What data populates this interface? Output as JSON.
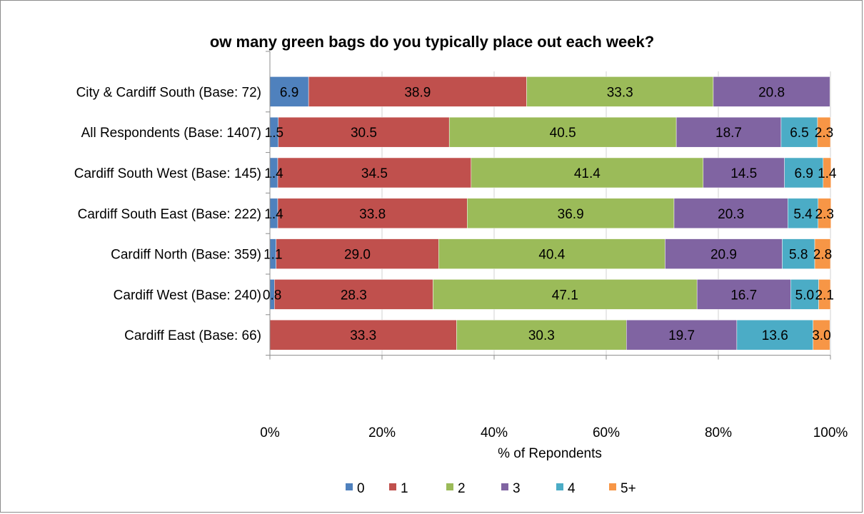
{
  "chart_data": {
    "type": "bar",
    "orientation": "horizontal",
    "stacked": "percent",
    "title": "ow many green bags do you typically place out each week?",
    "xlabel": "% of Repondents",
    "ylabel": "",
    "xlim": [
      0,
      100
    ],
    "x_ticks": [
      "0%",
      "20%",
      "40%",
      "60%",
      "80%",
      "100%"
    ],
    "grid": "vertical",
    "legend_position": "bottom",
    "categories": [
      "City & Cardiff South (Base: 72)",
      "All Respondents (Base: 1407)",
      "Cardiff South West (Base: 145)",
      "Cardiff South East (Base: 222)",
      "Cardiff North (Base: 359)",
      "Cardiff West (Base: 240)",
      "Cardiff East (Base: 66)"
    ],
    "series": [
      {
        "name": "0",
        "color": "#4f81bd",
        "values": [
          6.9,
          1.5,
          1.4,
          1.4,
          1.1,
          0.8,
          0
        ]
      },
      {
        "name": "1",
        "color": "#c0504d",
        "values": [
          38.9,
          30.5,
          34.5,
          33.8,
          29.0,
          28.3,
          33.3
        ]
      },
      {
        "name": "2",
        "color": "#9bbb59",
        "values": [
          33.3,
          40.5,
          41.4,
          36.9,
          40.4,
          47.1,
          30.3
        ]
      },
      {
        "name": "3",
        "color": "#8064a2",
        "values": [
          20.8,
          18.7,
          14.5,
          20.3,
          20.9,
          16.7,
          19.7
        ]
      },
      {
        "name": "4",
        "color": "#4bacc6",
        "values": [
          0,
          6.5,
          6.9,
          5.4,
          5.8,
          5.0,
          13.6
        ]
      },
      {
        "name": "5+",
        "color": "#f79646",
        "values": [
          0,
          2.3,
          1.4,
          2.3,
          2.8,
          2.1,
          3.0
        ]
      }
    ],
    "data_labels": [
      [
        "6.9",
        "38.9",
        "33.3",
        "20.8",
        "",
        ""
      ],
      [
        "1.5",
        "30.5",
        "40.5",
        "18.7",
        "6.5",
        "2.3"
      ],
      [
        "1.4",
        "34.5",
        "41.4",
        "14.5",
        "6.9",
        "1.4"
      ],
      [
        "1.4",
        "33.8",
        "36.9",
        "20.3",
        "5.4",
        "2.3"
      ],
      [
        "1.1",
        "29.0",
        "40.4",
        "20.9",
        "5.8",
        "2.8"
      ],
      [
        "0.8",
        "28.3",
        "47.1",
        "16.7",
        "5.0",
        "2.1"
      ],
      [
        "",
        "33.3",
        "30.3",
        "19.7",
        "13.6",
        "3.0"
      ]
    ]
  }
}
